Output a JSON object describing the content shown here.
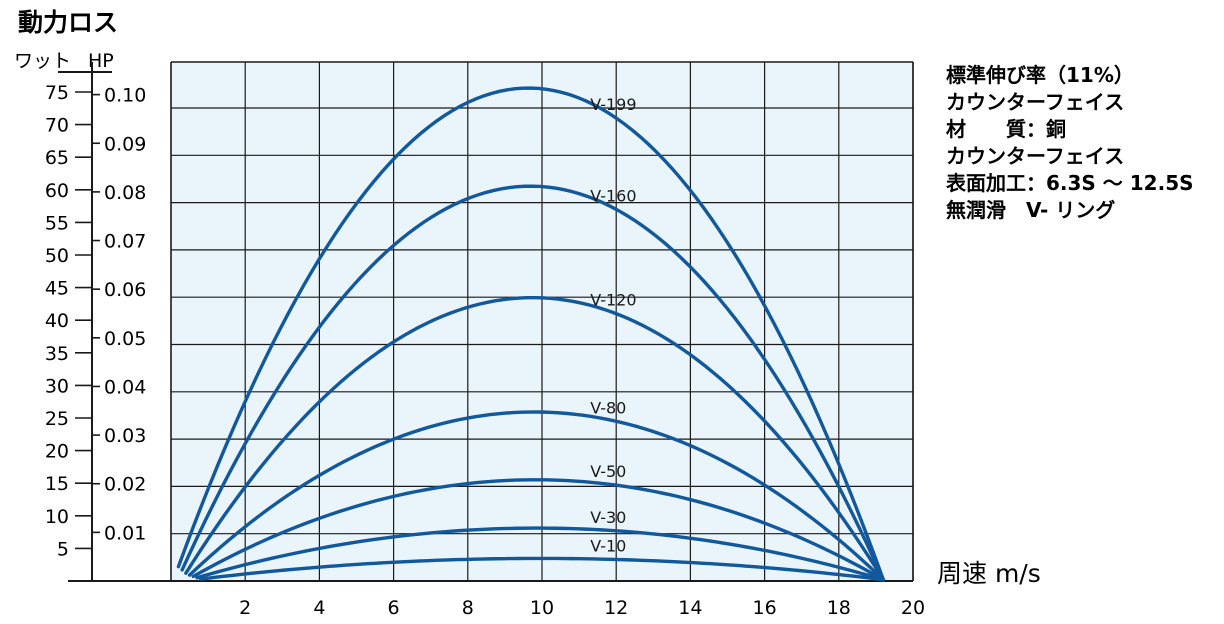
{
  "chart_data": {
    "type": "line",
    "title": "動力ロス",
    "y_unit_left": "ワット",
    "y_unit_right": "HP",
    "xlabel": "周速 m/s",
    "xlim": [
      0,
      20
    ],
    "x_ticks": [
      2,
      4,
      6,
      8,
      10,
      12,
      14,
      16,
      18,
      20
    ],
    "ylim_watt": [
      0,
      75
    ],
    "y_ticks_watt": [
      5,
      10,
      15,
      20,
      25,
      30,
      35,
      40,
      45,
      50,
      55,
      60,
      65,
      70,
      75
    ],
    "y_ticks_hp": [
      "0.01",
      "0.02",
      "0.03",
      "0.04",
      "0.05",
      "0.06",
      "0.07",
      "0.08",
      "0.09",
      "0.10"
    ],
    "hp_per_watt": 0.0013405,
    "grid": true,
    "series": [
      {
        "name": "V-199",
        "points": [
          [
            0.2,
            2.2
          ],
          [
            12,
            71.0
          ],
          [
            19.2,
            0.2
          ]
        ]
      },
      {
        "name": "V-160",
        "points": [
          [
            0.3,
            1.7
          ],
          [
            12,
            57.0
          ],
          [
            19.2,
            0.2
          ]
        ]
      },
      {
        "name": "V-120",
        "points": [
          [
            0.4,
            1.2
          ],
          [
            12,
            41.0
          ],
          [
            19.2,
            0.2
          ]
        ]
      },
      {
        "name": "V-80",
        "points": [
          [
            0.5,
            0.9
          ],
          [
            12,
            24.5
          ],
          [
            19.2,
            0.2
          ]
        ]
      },
      {
        "name": "V-50",
        "points": [
          [
            0.6,
            0.7
          ],
          [
            12,
            14.7
          ],
          [
            19.2,
            0.2
          ]
        ]
      },
      {
        "name": "V-30",
        "points": [
          [
            0.7,
            0.5
          ],
          [
            12,
            7.7
          ],
          [
            19.2,
            0.2
          ]
        ]
      },
      {
        "name": "V-10",
        "points": [
          [
            0.8,
            0.3
          ],
          [
            12,
            3.3
          ],
          [
            19.2,
            0.2
          ]
        ]
      }
    ],
    "colors": {
      "plot_bg": "#eaf4fb",
      "grid": "#1a1a1a",
      "curve": "#11589c"
    }
  },
  "notes": [
    "標準伸び率（11%）",
    "カウンターフェイス",
    "材　　質：銅",
    "カウンターフェイス",
    "表面加工：6.3S ～ 12.5S",
    "無潤滑　V- リング"
  ]
}
